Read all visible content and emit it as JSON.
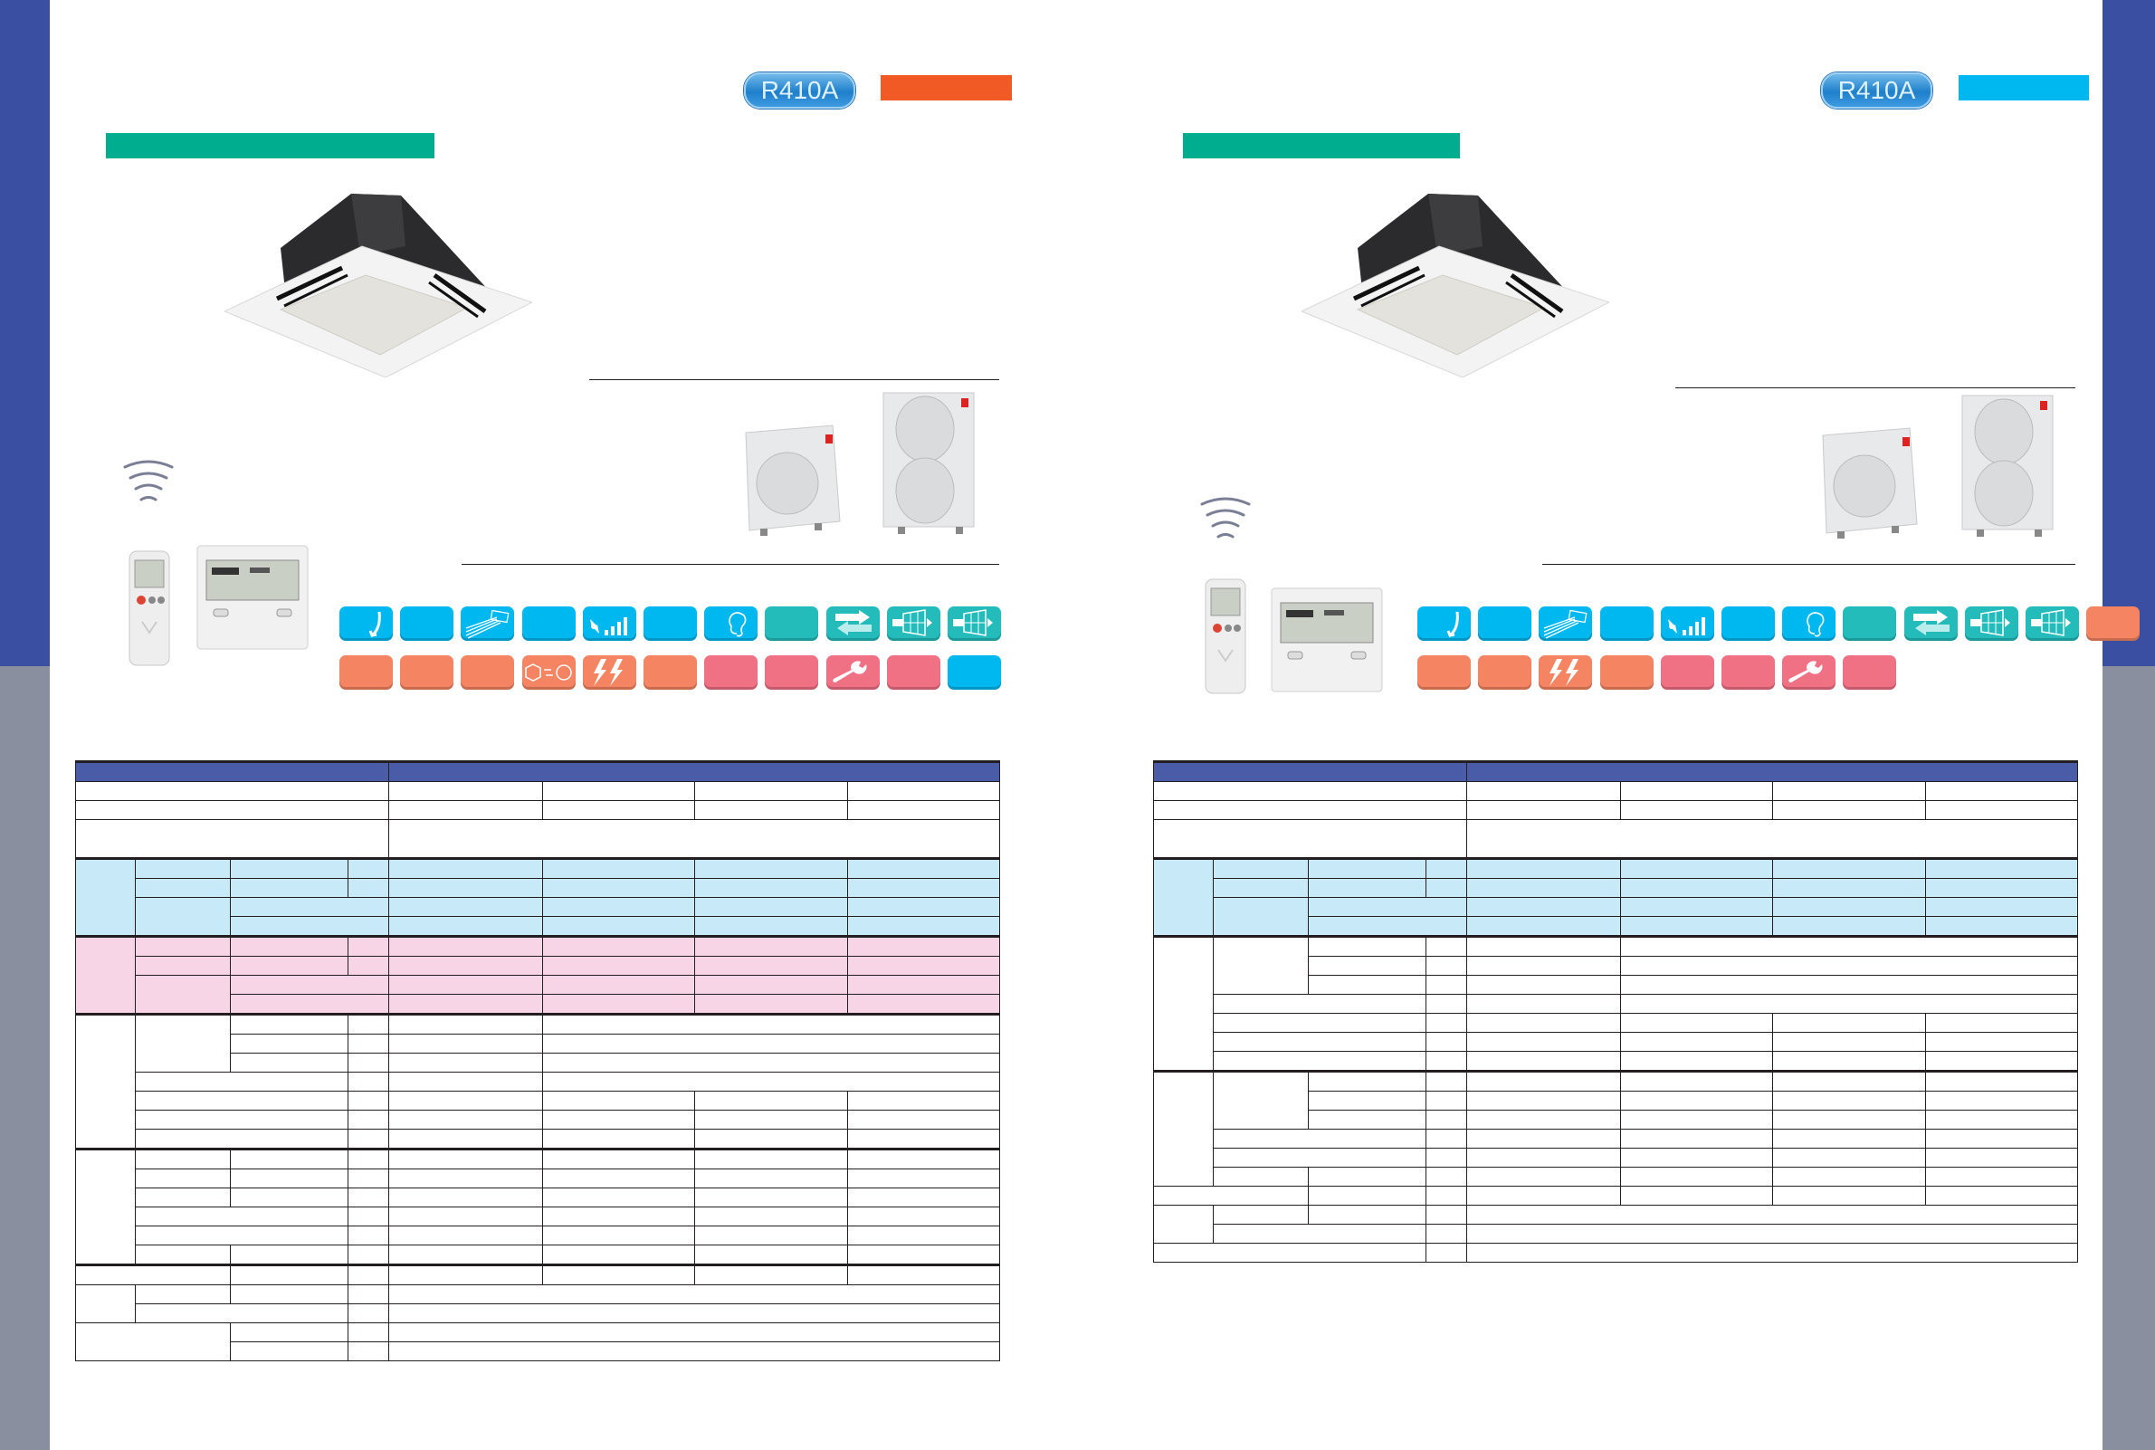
{
  "colors": {
    "sidebar_blue": "#3a4ea2",
    "sidebar_gray": "#8a8f9f",
    "section_bar_green": "#00ad8e",
    "left_tag_orange": "#f15a24",
    "right_tag_cyan": "#00b8f0",
    "table_header_navy": "#4a5ca8",
    "cooling_row_blue": "#c7e9f8",
    "heating_row_pink": "#f8d5e6"
  },
  "left_page": {
    "refrigerant_badge": "R410A",
    "feature_icons_row1": [
      "airflow-down",
      "blank-blue",
      "louver",
      "blank-blue",
      "fan-speed",
      "blank-blue",
      "ear",
      "blank-teal",
      "exchange-arrows",
      "filter-arrow",
      "filter-arrow"
    ],
    "feature_icons_row2": [
      "blank-orange",
      "blank-orange",
      "blank-orange",
      "defrost-sun",
      "double-bolt",
      "blank-orange",
      "blank-pink",
      "blank-pink",
      "wrench",
      "blank-pink",
      "blank-blue"
    ]
  },
  "right_page": {
    "refrigerant_badge": "R410A",
    "feature_icons_row1": [
      "airflow-down",
      "blank-blue",
      "louver",
      "blank-blue",
      "fan-speed",
      "blank-blue",
      "ear",
      "blank-teal",
      "exchange-arrows",
      "filter-arrow",
      "filter-arrow",
      "blank-orange"
    ],
    "feature_icons_row2": [
      "blank-orange",
      "blank-orange",
      "double-bolt",
      "blank-orange",
      "blank-pink",
      "blank-pink",
      "wrench",
      "blank-pink"
    ]
  }
}
